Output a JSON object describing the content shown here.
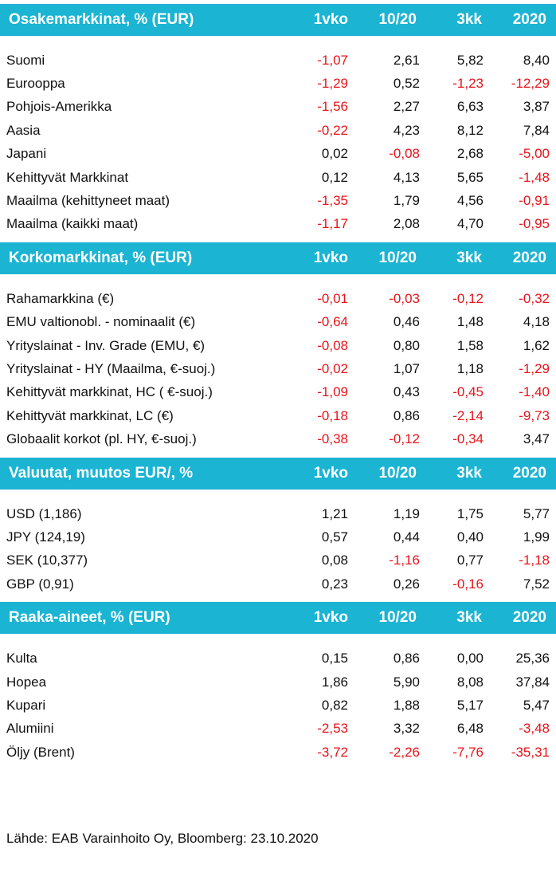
{
  "sections": [
    {
      "title": "Osakemarkkinat, % (EUR)",
      "columns": [
        "1vko",
        "10/20",
        "3kk",
        "2020"
      ],
      "rows": [
        [
          "Suomi",
          "-1,07",
          "2,61",
          "5,82",
          "8,40"
        ],
        [
          "Eurooppa",
          "-1,29",
          "0,52",
          "-1,23",
          "-12,29"
        ],
        [
          "Pohjois-Amerikka",
          "-1,56",
          "2,27",
          "6,63",
          "3,87"
        ],
        [
          "Aasia",
          "-0,22",
          "4,23",
          "8,12",
          "7,84"
        ],
        [
          "Japani",
          "0,02",
          "-0,08",
          "2,68",
          "-5,00"
        ],
        [
          "Kehittyvät Markkinat",
          "0,12",
          "4,13",
          "5,65",
          "-1,48"
        ],
        [
          "Maailma (kehittyneet maat)",
          "-1,35",
          "1,79",
          "4,56",
          "-0,91"
        ],
        [
          "Maailma (kaikki maat)",
          "-1,17",
          "2,08",
          "4,70",
          "-0,95"
        ]
      ]
    },
    {
      "title": "Korkomarkkinat, % (EUR)",
      "columns": [
        "1vko",
        "10/20",
        "3kk",
        "2020"
      ],
      "rows": [
        [
          "Rahamarkkina (€)",
          "-0,01",
          "-0,03",
          "-0,12",
          "-0,32"
        ],
        [
          "EMU valtionobl. - nominaalit (€)",
          "-0,64",
          "0,46",
          "1,48",
          "4,18"
        ],
        [
          "Yrityslainat - Inv. Grade (EMU, €)",
          "-0,08",
          "0,80",
          "1,58",
          "1,62"
        ],
        [
          "Yrityslainat - HY (Maailma, €-suoj.)",
          "-0,02",
          "1,07",
          "1,18",
          "-1,29"
        ],
        [
          "Kehittyvät markkinat, HC ( €-suoj.)",
          "-1,09",
          "0,43",
          "-0,45",
          "-1,40"
        ],
        [
          "Kehittyvät markkinat, LC (€)",
          "-0,18",
          "0,86",
          "-2,14",
          "-9,73"
        ],
        [
          "Globaalit korkot (pl. HY,  €-suoj.)",
          "-0,38",
          "-0,12",
          "-0,34",
          "3,47"
        ]
      ]
    },
    {
      "title": "Valuutat, muutos EUR/,  %",
      "columns": [
        "1vko",
        "10/20",
        "3kk",
        "2020"
      ],
      "rows": [
        [
          "USD (1,186)",
          "1,21",
          "1,19",
          "1,75",
          "5,77"
        ],
        [
          "JPY (124,19)",
          "0,57",
          "0,44",
          "0,40",
          "1,99"
        ],
        [
          "SEK (10,377)",
          "0,08",
          "-1,16",
          "0,77",
          "-1,18"
        ],
        [
          "GBP (0,91)",
          "0,23",
          "0,26",
          "-0,16",
          "7,52"
        ]
      ]
    },
    {
      "title": "Raaka-aineet, % (EUR)",
      "columns": [
        "1vko",
        "10/20",
        "3kk",
        "2020"
      ],
      "rows": [
        [
          "Kulta",
          "0,15",
          "0,86",
          "0,00",
          "25,36"
        ],
        [
          "Hopea",
          "1,86",
          "5,90",
          "8,08",
          "37,84"
        ],
        [
          "Kupari",
          "0,82",
          "1,88",
          "5,17",
          "5,47"
        ],
        [
          "Alumiini",
          "-2,53",
          "3,32",
          "6,48",
          "-3,48"
        ],
        [
          "Öljy (Brent)",
          "-3,72",
          "-2,26",
          "-7,76",
          "-35,31"
        ]
      ]
    }
  ],
  "footer": "Lähde: EAB Varainhoito Oy, Bloomberg: 23.10.2020"
}
